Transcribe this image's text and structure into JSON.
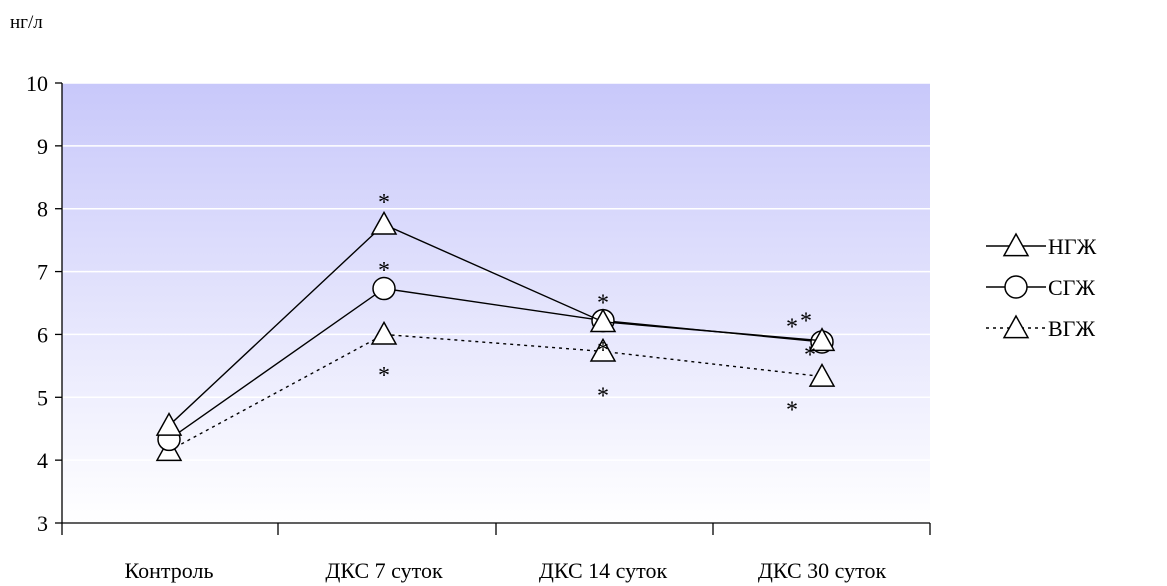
{
  "chart_data": {
    "type": "line",
    "ylabel": "нг/л",
    "ylim": [
      3,
      10
    ],
    "yticks": [
      3,
      4,
      5,
      6,
      7,
      8,
      9,
      10
    ],
    "categories": [
      "Контроль",
      "ДКС 7 суток",
      "ДКС 14 суток",
      "ДКС 30 суток"
    ],
    "grid": true,
    "legend_position": "right",
    "background_gradient": [
      "#c8c8fa",
      "#ffffff"
    ],
    "series": [
      {
        "name": "НГЖ",
        "values": [
          4.55,
          7.75,
          6.2,
          5.9
        ],
        "marker": "triangle",
        "line": "solid"
      },
      {
        "name": "СГЖ",
        "values": [
          4.33,
          6.73,
          6.22,
          5.88
        ],
        "marker": "circle",
        "line": "solid"
      },
      {
        "name": "ВГЖ",
        "values": [
          4.15,
          6.0,
          5.73,
          5.33
        ],
        "marker": "triangle",
        "line": "dotted"
      }
    ],
    "annotations": [
      {
        "text": "*",
        "category": 1,
        "y": 8.2
      },
      {
        "text": "*",
        "category": 1,
        "y": 7.12
      },
      {
        "text": "*",
        "category": 1,
        "y": 5.45
      },
      {
        "text": "*",
        "category": 2,
        "y": 6.6
      },
      {
        "text": "*",
        "category": 2,
        "y": 5.85
      },
      {
        "text": "*",
        "category": 2,
        "y": 5.12
      },
      {
        "text": "*",
        "category": 3,
        "y": 6.22,
        "offset": -30
      },
      {
        "text": "*",
        "category": 3,
        "y": 6.32,
        "offset": -16
      },
      {
        "text": "*",
        "category": 3,
        "y": 5.78,
        "offset": -12
      },
      {
        "text": "*",
        "category": 3,
        "y": 4.9,
        "offset": -30
      }
    ]
  }
}
